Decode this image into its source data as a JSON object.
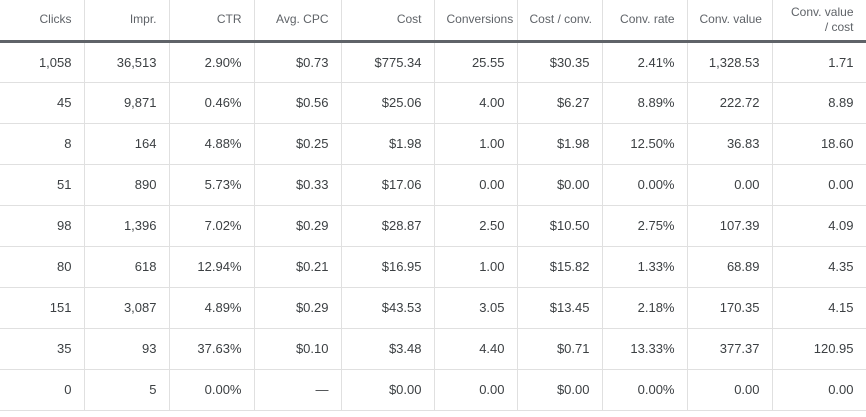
{
  "table": {
    "columns": [
      "Clicks",
      "Impr.",
      "CTR",
      "Avg. CPC",
      "Cost",
      "Conversions",
      "Cost / conv.",
      "Conv. rate",
      "Conv. value",
      "Conv. value / cost"
    ],
    "rows": [
      [
        "1,058",
        "36,513",
        "2.90%",
        "$0.73",
        "$775.34",
        "25.55",
        "$30.35",
        "2.41%",
        "1,328.53",
        "1.71"
      ],
      [
        "45",
        "9,871",
        "0.46%",
        "$0.56",
        "$25.06",
        "4.00",
        "$6.27",
        "8.89%",
        "222.72",
        "8.89"
      ],
      [
        "8",
        "164",
        "4.88%",
        "$0.25",
        "$1.98",
        "1.00",
        "$1.98",
        "12.50%",
        "36.83",
        "18.60"
      ],
      [
        "51",
        "890",
        "5.73%",
        "$0.33",
        "$17.06",
        "0.00",
        "$0.00",
        "0.00%",
        "0.00",
        "0.00"
      ],
      [
        "98",
        "1,396",
        "7.02%",
        "$0.29",
        "$28.87",
        "2.50",
        "$10.50",
        "2.75%",
        "107.39",
        "4.09"
      ],
      [
        "80",
        "618",
        "12.94%",
        "$0.21",
        "$16.95",
        "1.00",
        "$15.82",
        "1.33%",
        "68.89",
        "4.35"
      ],
      [
        "151",
        "3,087",
        "4.89%",
        "$0.29",
        "$43.53",
        "3.05",
        "$13.45",
        "2.18%",
        "170.35",
        "4.15"
      ],
      [
        "35",
        "93",
        "37.63%",
        "$0.10",
        "$3.48",
        "4.40",
        "$0.71",
        "13.33%",
        "377.37",
        "120.95"
      ],
      [
        "0",
        "5",
        "0.00%",
        "—",
        "$0.00",
        "0.00",
        "$0.00",
        "0.00%",
        "0.00",
        "0.00"
      ]
    ]
  },
  "colors": {
    "background": "#ffffff",
    "header_text": "#5f6368",
    "body_text": "#3c4043",
    "grid_line": "#e0e0e0",
    "header_rule": "#5f6368"
  }
}
